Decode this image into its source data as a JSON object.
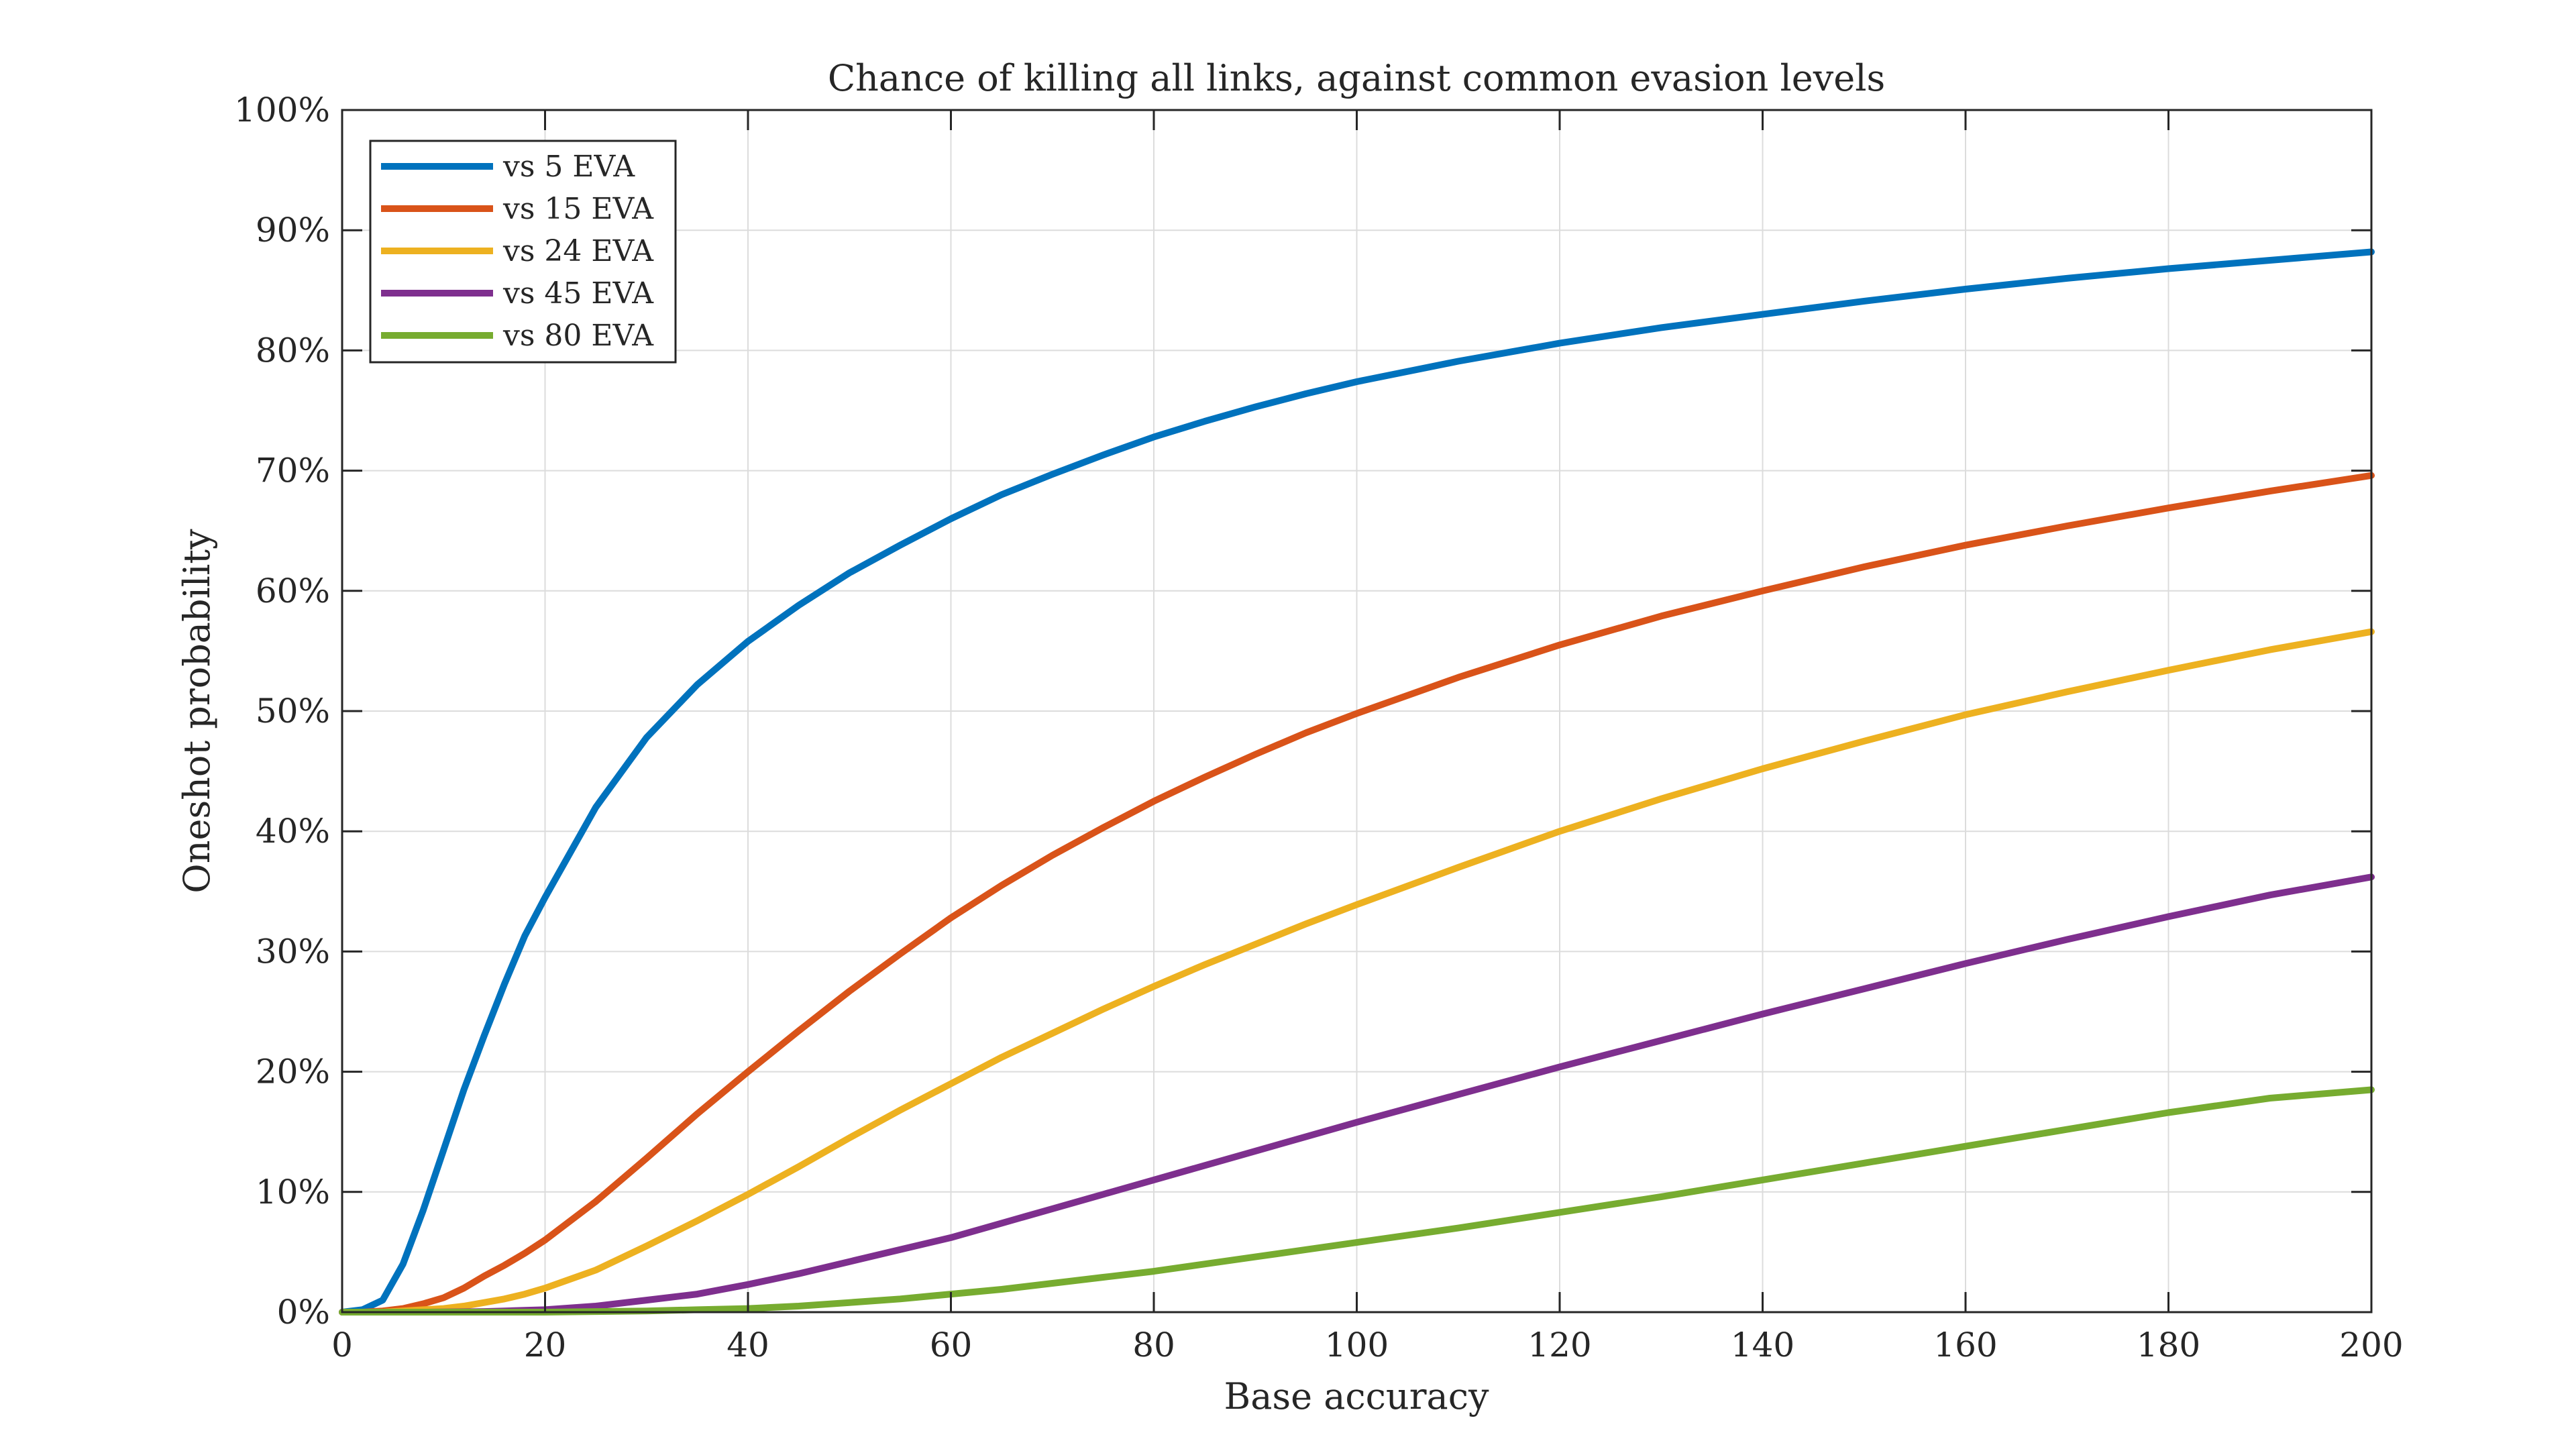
{
  "chart_data": {
    "type": "line",
    "title": "Chance of killing all links, against common evasion levels",
    "xlabel": "Base accuracy",
    "ylabel": "Oneshot probability",
    "xlim": [
      0,
      200
    ],
    "ylim": [
      0,
      100
    ],
    "xticks": [
      0,
      20,
      40,
      60,
      80,
      100,
      120,
      140,
      160,
      180,
      200
    ],
    "xtick_labels": [
      "0",
      "20",
      "40",
      "60",
      "80",
      "100",
      "120",
      "140",
      "160",
      "180",
      "200"
    ],
    "yticks": [
      0,
      10,
      20,
      30,
      40,
      50,
      60,
      70,
      80,
      90,
      100
    ],
    "ytick_labels": [
      "0%",
      "10%",
      "20%",
      "30%",
      "40%",
      "50%",
      "60%",
      "70%",
      "80%",
      "90%",
      "100%"
    ],
    "grid": true,
    "legend_position": "top-left",
    "x": [
      0,
      2,
      4,
      6,
      8,
      10,
      12,
      14,
      16,
      18,
      20,
      25,
      30,
      35,
      40,
      45,
      50,
      55,
      60,
      65,
      70,
      75,
      80,
      85,
      90,
      95,
      100,
      110,
      120,
      130,
      140,
      150,
      160,
      170,
      180,
      190,
      200
    ],
    "series": [
      {
        "name": "vs 5 EVA",
        "color": "#0072BD",
        "values": [
          0,
          0.2,
          1.0,
          4.0,
          8.5,
          13.5,
          18.5,
          23.0,
          27.3,
          31.3,
          34.5,
          42.0,
          47.8,
          52.2,
          55.8,
          58.8,
          61.5,
          63.8,
          66.0,
          68.0,
          69.7,
          71.3,
          72.8,
          74.1,
          75.3,
          76.4,
          77.4,
          79.1,
          80.6,
          81.9,
          83.0,
          84.1,
          85.1,
          86.0,
          86.8,
          87.5,
          88.2
        ]
      },
      {
        "name": "vs 15 EVA",
        "color": "#D95319",
        "values": [
          0,
          0,
          0.1,
          0.3,
          0.7,
          1.2,
          2.0,
          3.0,
          3.9,
          4.9,
          6.0,
          9.2,
          12.8,
          16.5,
          20.0,
          23.4,
          26.7,
          29.8,
          32.8,
          35.5,
          38.0,
          40.3,
          42.5,
          44.5,
          46.4,
          48.2,
          49.8,
          52.8,
          55.5,
          57.9,
          60.0,
          62.0,
          63.8,
          65.4,
          66.9,
          68.3,
          69.6
        ]
      },
      {
        "name": "vs 24 EVA",
        "color": "#EDB120",
        "values": [
          0,
          0,
          0,
          0.1,
          0.2,
          0.3,
          0.5,
          0.8,
          1.1,
          1.5,
          2.0,
          3.5,
          5.5,
          7.6,
          9.8,
          12.1,
          14.5,
          16.8,
          19.0,
          21.2,
          23.2,
          25.2,
          27.1,
          28.9,
          30.6,
          32.3,
          33.9,
          37.0,
          40.0,
          42.7,
          45.2,
          47.5,
          49.7,
          51.6,
          53.4,
          55.1,
          56.6
        ]
      },
      {
        "name": "vs 45 EVA",
        "color": "#7E2F8E",
        "values": [
          0,
          0,
          0,
          0,
          0,
          0.01,
          0.03,
          0.05,
          0.1,
          0.15,
          0.2,
          0.5,
          1.0,
          1.5,
          2.3,
          3.2,
          4.2,
          5.2,
          6.2,
          7.4,
          8.6,
          9.8,
          11.0,
          12.2,
          13.4,
          14.6,
          15.8,
          18.1,
          20.4,
          22.6,
          24.8,
          26.9,
          29.0,
          31.0,
          32.9,
          34.7,
          36.2
        ]
      },
      {
        "name": "vs 80 EVA",
        "color": "#77AC30",
        "values": [
          0,
          0,
          0,
          0,
          0,
          0,
          0,
          0,
          0,
          0,
          0,
          0.05,
          0.1,
          0.2,
          0.3,
          0.5,
          0.8,
          1.1,
          1.5,
          1.9,
          2.4,
          2.9,
          3.4,
          4.0,
          4.6,
          5.2,
          5.8,
          7.0,
          8.3,
          9.6,
          11.0,
          12.4,
          13.8,
          15.2,
          16.6,
          17.8,
          18.5
        ]
      }
    ]
  }
}
